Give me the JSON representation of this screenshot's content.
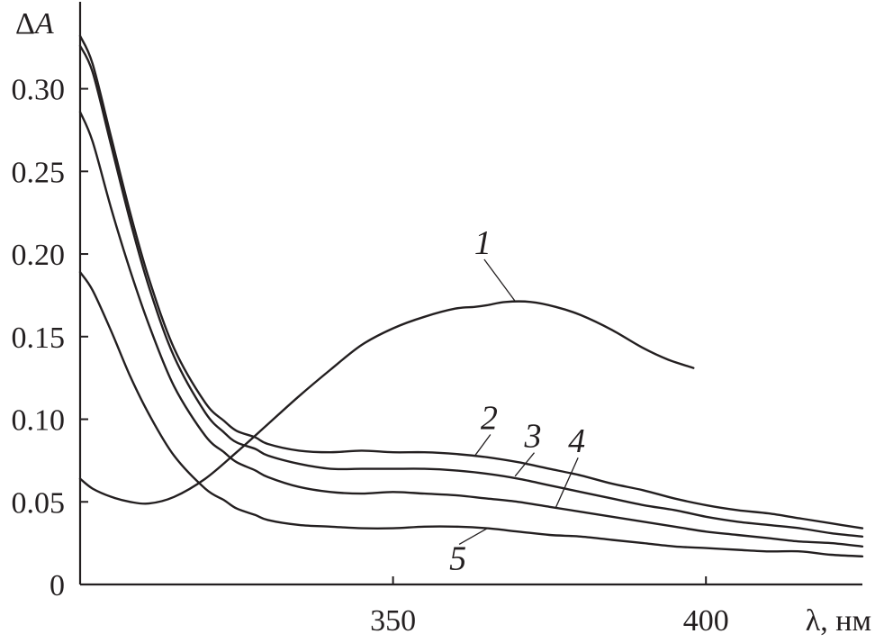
{
  "chart_data": {
    "type": "line",
    "title": "",
    "ylabel_symbol": "Δ",
    "ylabel_var": "A",
    "xlabel": "λ, нм",
    "xlim": [
      300,
      425
    ],
    "ylim": [
      0,
      0.345
    ],
    "x_ticks": [
      350,
      400
    ],
    "x_tick_labels": [
      "350",
      "400"
    ],
    "y_ticks": [
      0,
      0.05,
      0.1,
      0.15,
      0.2,
      0.25,
      0.3
    ],
    "y_tick_labels": [
      "0",
      "0.05",
      "0.10",
      "0.15",
      "0.20",
      "0.25",
      "0.30"
    ],
    "series": [
      {
        "name": "1",
        "x": [
          300,
          302,
          305,
          308,
          311,
          315,
          320,
          325,
          330,
          335,
          340,
          345,
          350,
          355,
          360,
          363,
          365,
          368,
          372,
          376,
          380,
          385,
          390,
          394,
          398
        ],
        "y": [
          0.064,
          0.058,
          0.053,
          0.05,
          0.049,
          0.053,
          0.064,
          0.08,
          0.097,
          0.114,
          0.13,
          0.145,
          0.155,
          0.162,
          0.167,
          0.168,
          0.169,
          0.171,
          0.171,
          0.168,
          0.163,
          0.154,
          0.143,
          0.136,
          0.131
        ],
        "label_x": 365,
        "label_y": 0.2,
        "anchor_x": 369.5,
        "anchor_y": 0.1715
      },
      {
        "name": "2",
        "x": [
          300,
          302,
          305,
          308,
          311,
          315,
          320,
          323,
          325,
          328,
          330,
          335,
          340,
          345,
          350,
          355,
          360,
          365,
          370,
          375,
          380,
          385,
          390,
          395,
          400,
          405,
          410,
          415,
          420,
          425
        ],
        "y": [
          0.332,
          0.315,
          0.27,
          0.225,
          0.185,
          0.143,
          0.11,
          0.099,
          0.093,
          0.089,
          0.085,
          0.081,
          0.08,
          0.081,
          0.08,
          0.08,
          0.079,
          0.077,
          0.074,
          0.07,
          0.066,
          0.061,
          0.057,
          0.052,
          0.048,
          0.045,
          0.043,
          0.04,
          0.037,
          0.034
        ],
        "label_x": 366,
        "label_y": 0.094,
        "anchor_x": 363,
        "anchor_y": 0.0775
      },
      {
        "name": "3",
        "x": [
          300,
          302,
          305,
          308,
          311,
          315,
          320,
          323,
          325,
          328,
          330,
          335,
          340,
          345,
          350,
          355,
          360,
          365,
          370,
          375,
          380,
          385,
          390,
          395,
          400,
          405,
          410,
          415,
          420,
          425
        ],
        "y": [
          0.326,
          0.31,
          0.265,
          0.22,
          0.18,
          0.138,
          0.104,
          0.092,
          0.086,
          0.082,
          0.078,
          0.073,
          0.07,
          0.07,
          0.07,
          0.07,
          0.069,
          0.067,
          0.064,
          0.06,
          0.056,
          0.052,
          0.048,
          0.045,
          0.041,
          0.038,
          0.036,
          0.034,
          0.031,
          0.029
        ],
        "label_x": 373,
        "label_y": 0.083,
        "anchor_x": 369.5,
        "anchor_y": 0.0655
      },
      {
        "name": "4",
        "x": [
          300,
          302,
          305,
          308,
          311,
          315,
          320,
          323,
          325,
          328,
          330,
          335,
          340,
          345,
          350,
          355,
          360,
          365,
          370,
          375,
          380,
          385,
          390,
          395,
          400,
          405,
          410,
          415,
          420,
          425
        ],
        "y": [
          0.286,
          0.268,
          0.227,
          0.19,
          0.157,
          0.12,
          0.09,
          0.08,
          0.074,
          0.069,
          0.065,
          0.059,
          0.056,
          0.055,
          0.056,
          0.055,
          0.054,
          0.052,
          0.05,
          0.047,
          0.044,
          0.041,
          0.038,
          0.035,
          0.032,
          0.03,
          0.028,
          0.026,
          0.025,
          0.023
        ],
        "label_x": 380,
        "label_y": 0.08,
        "anchor_x": 376,
        "anchor_y": 0.0465
      },
      {
        "name": "5",
        "x": [
          300,
          302,
          305,
          308,
          311,
          315,
          320,
          323,
          325,
          328,
          330,
          335,
          340,
          345,
          350,
          355,
          360,
          365,
          370,
          375,
          380,
          385,
          390,
          395,
          400,
          405,
          410,
          415,
          420,
          425
        ],
        "y": [
          0.189,
          0.178,
          0.153,
          0.126,
          0.103,
          0.078,
          0.058,
          0.051,
          0.046,
          0.042,
          0.039,
          0.036,
          0.035,
          0.034,
          0.034,
          0.035,
          0.035,
          0.034,
          0.032,
          0.03,
          0.029,
          0.027,
          0.025,
          0.023,
          0.022,
          0.021,
          0.02,
          0.02,
          0.018,
          0.017
        ],
        "label_x": 361,
        "label_y": 0.009,
        "anchor_x": 365,
        "anchor_y": 0.0338
      }
    ]
  }
}
